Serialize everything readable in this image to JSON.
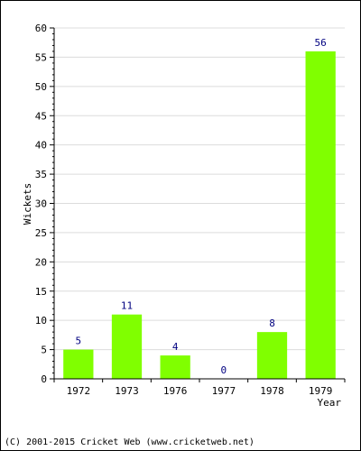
{
  "chart_data": {
    "type": "bar",
    "categories": [
      "1972",
      "1973",
      "1976",
      "1977",
      "1978",
      "1979"
    ],
    "values": [
      5,
      11,
      4,
      0,
      8,
      56
    ],
    "data_labels": [
      "5",
      "11",
      "4",
      "0",
      "8",
      "56"
    ],
    "title": "",
    "xlabel": "Year",
    "ylabel": "Wickets",
    "ylim": [
      0,
      60
    ],
    "yticks": [
      "0",
      "5",
      "10",
      "15",
      "20",
      "25",
      "30",
      "35",
      "40",
      "45",
      "50",
      "55",
      "60"
    ],
    "grid": "horizontal",
    "bar_color": "#80ff00",
    "label_color": "#000080"
  },
  "footer": "(C) 2001-2015 Cricket Web (www.cricketweb.net)"
}
